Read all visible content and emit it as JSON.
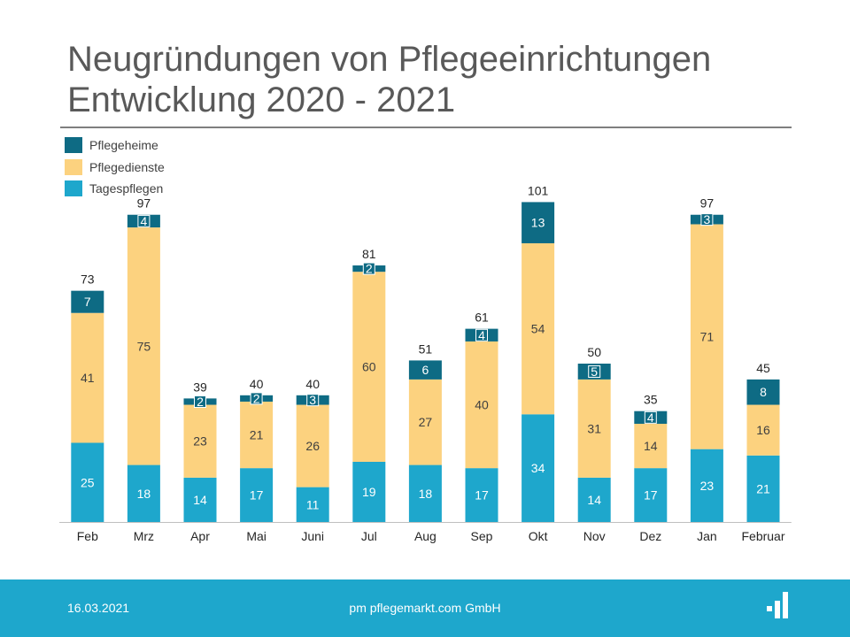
{
  "title": {
    "line1": "Neugründungen von Pflegeeinrichtungen",
    "line2": "Entwicklung 2020 - 2021"
  },
  "colors": {
    "pflegeheime": "#0e6b84",
    "pflegedienste": "#fcd27f",
    "tagespflegen": "#1ea7cc",
    "footer": "#1ea7cc"
  },
  "legend": [
    {
      "label": "Pflegeheime",
      "color": "#0e6b84"
    },
    {
      "label": "Pflegedienste",
      "color": "#fcd27f"
    },
    {
      "label": "Tagespflegen",
      "color": "#1ea7cc"
    }
  ],
  "chart_data": {
    "type": "bar",
    "stacked": true,
    "title": "Neugründungen von Pflegeeinrichtungen Entwicklung 2020 - 2021",
    "categories": [
      "Feb",
      "Mrz",
      "Apr",
      "Mai",
      "Juni",
      "Jul",
      "Aug",
      "Sep",
      "Okt",
      "Nov",
      "Dez",
      "Jan",
      "Februar"
    ],
    "series": [
      {
        "name": "Tagespflegen",
        "values": [
          25,
          18,
          14,
          17,
          11,
          19,
          18,
          17,
          34,
          14,
          17,
          23,
          21
        ]
      },
      {
        "name": "Pflegedienste",
        "values": [
          41,
          75,
          23,
          21,
          26,
          60,
          27,
          40,
          54,
          31,
          14,
          71,
          16
        ]
      },
      {
        "name": "Pflegeheime",
        "values": [
          7,
          4,
          2,
          2,
          3,
          2,
          6,
          4,
          13,
          5,
          4,
          3,
          8
        ]
      }
    ],
    "totals": [
      73,
      97,
      39,
      40,
      40,
      81,
      51,
      61,
      101,
      50,
      35,
      97,
      45
    ],
    "ylim": [
      0,
      101
    ],
    "xlabel": "",
    "ylabel": "",
    "grid": false,
    "legend_position": "top-left"
  },
  "footer": {
    "date": "16.03.2021",
    "company": "pm pflegemarkt.com GmbH"
  }
}
